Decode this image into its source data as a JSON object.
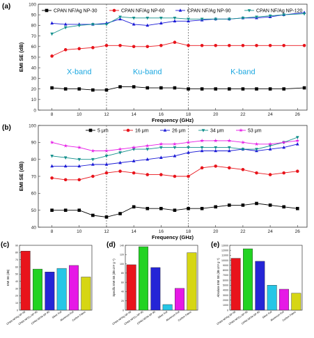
{
  "chart_data": [
    {
      "panel_label": "(a)",
      "type": "line",
      "xlabel": "Frequency (GHz)",
      "ylabel": "EMI SE (dB)",
      "xlim": [
        7,
        26.7
      ],
      "ylim": [
        0,
        100
      ],
      "xticks": [
        8,
        10,
        12,
        14,
        16,
        18,
        20,
        22,
        24,
        26
      ],
      "yticks": [
        0,
        10,
        20,
        30,
        40,
        50,
        60,
        70,
        80,
        90,
        100
      ],
      "x": [
        8,
        9,
        10,
        11,
        12,
        13,
        14,
        15,
        16,
        17,
        18,
        19,
        20,
        21,
        22,
        23,
        24,
        25,
        26.5
      ],
      "legend_position": "top",
      "band_dividers": [
        12,
        18
      ],
      "band_labels": [
        {
          "text": "X-band",
          "x": 10,
          "y": 34
        },
        {
          "text": "Ku-band",
          "x": 15,
          "y": 34
        },
        {
          "text": "K-band",
          "x": 22,
          "y": 34
        }
      ],
      "band_label_color": "#1aa7e0",
      "series": [
        {
          "name": "CPAN NF/Ag NP-30",
          "color": "#000000",
          "marker": "square",
          "values": [
            21,
            20,
            20,
            19,
            19,
            22,
            22,
            21,
            21,
            21,
            20,
            20,
            20,
            20,
            20,
            20,
            20,
            20,
            21
          ]
        },
        {
          "name": "CPAN NF/Ag NP-60",
          "color": "#e8141b",
          "marker": "circle",
          "values": [
            51,
            57,
            58,
            59,
            61,
            61,
            60,
            60,
            61,
            64,
            61,
            61,
            61,
            61,
            61,
            61,
            61,
            61,
            61
          ]
        },
        {
          "name": "CPAN NF/Ag NP-90",
          "color": "#1a1ad6",
          "marker": "triangle",
          "values": [
            82,
            81,
            81,
            81,
            82,
            86,
            81,
            80,
            82,
            84,
            84,
            85,
            86,
            86,
            87,
            87,
            88,
            90,
            92
          ]
        },
        {
          "name": "CPAN NF/Ag NP-120",
          "color": "#13908c",
          "marker": "triangle-down",
          "values": [
            72,
            78,
            80,
            81,
            81,
            88,
            87,
            87,
            87,
            87,
            86,
            86,
            86,
            86,
            87,
            88,
            89,
            90,
            91
          ]
        }
      ]
    },
    {
      "panel_label": "(b)",
      "type": "line",
      "xlabel": "Frequency (GHz)",
      "ylabel": "EMI SE (dB)",
      "xlim": [
        7,
        26.7
      ],
      "ylim": [
        40,
        100
      ],
      "xticks": [
        8,
        10,
        12,
        14,
        16,
        18,
        20,
        22,
        24,
        26
      ],
      "yticks": [
        40,
        50,
        60,
        70,
        80,
        90,
        100
      ],
      "x": [
        8,
        9,
        10,
        11,
        12,
        13,
        14,
        15,
        16,
        17,
        18,
        19,
        20,
        21,
        22,
        23,
        24,
        25,
        26
      ],
      "legend_position": "top",
      "band_dividers": [
        12,
        18
      ],
      "series": [
        {
          "name": "5 μm",
          "color": "#000000",
          "marker": "square",
          "values": [
            50,
            50,
            50,
            47,
            46,
            48,
            52,
            51,
            51,
            50,
            51,
            51,
            52,
            53,
            53,
            54,
            53,
            52,
            51
          ]
        },
        {
          "name": "16 μm",
          "color": "#e8141b",
          "marker": "circle",
          "values": [
            69,
            68,
            68,
            70,
            72,
            73,
            72,
            71,
            71,
            70,
            70,
            75,
            76,
            75,
            74,
            72,
            71,
            72,
            73
          ]
        },
        {
          "name": "26 μm",
          "color": "#1a1ad6",
          "marker": "triangle",
          "values": [
            76,
            76,
            76,
            77,
            77,
            78,
            79,
            80,
            81,
            82,
            84,
            85,
            85,
            85,
            86,
            85,
            86,
            87,
            89
          ]
        },
        {
          "name": "34 μm",
          "color": "#13908c",
          "marker": "triangle-down",
          "values": [
            82,
            81,
            80,
            80,
            82,
            84,
            86,
            86,
            87,
            87,
            87,
            87,
            87,
            87,
            86,
            86,
            88,
            90,
            93
          ]
        },
        {
          "name": "53 μm",
          "color": "#e619e6",
          "marker": "star",
          "values": [
            90,
            88,
            87,
            85,
            85,
            86,
            87,
            88,
            89,
            89,
            90,
            91,
            91,
            91,
            90,
            89,
            89,
            90,
            91
          ]
        }
      ]
    },
    {
      "panel_label": "(c)",
      "type": "bar",
      "ylabel": "EMI SE (dB)",
      "ylim": [
        0,
        90
      ],
      "yticks": [
        0,
        10,
        20,
        30,
        40,
        50,
        60,
        70,
        80,
        90
      ],
      "categories": [
        "CPAN NF/Ag NP-90",
        "CPAN NF/Cu NP-90",
        "CPAN NF/Ni NP-90",
        "Silver Foil",
        "Aluminum Foil",
        "Carbon Fabric"
      ],
      "values": [
        82,
        57,
        53,
        58,
        62,
        46
      ],
      "colors": [
        "#e8141b",
        "#22d322",
        "#2525d6",
        "#26c6e6",
        "#e619e6",
        "#d6d614"
      ]
    },
    {
      "panel_label": "(d)",
      "type": "bar",
      "ylabel": "Specific EMI SE (dB cm³ g⁻¹)",
      "ylim": [
        0,
        140
      ],
      "yticks": [
        0,
        20,
        40,
        60,
        80,
        100,
        120,
        140
      ],
      "categories": [
        "CPAN NF/Ag NP-90",
        "CPAN NF/Cu NP-90",
        "CPAN NF/Ni NP-90",
        "Silver Foil",
        "Aluminum Foil",
        "Carbon Fabric"
      ],
      "values": [
        98,
        137,
        92,
        12,
        47,
        124
      ],
      "colors": [
        "#e8141b",
        "#22d322",
        "#2525d6",
        "#26c6e6",
        "#e619e6",
        "#d6d614"
      ]
    },
    {
      "panel_label": "(e)",
      "type": "bar",
      "ylabel": "Absolute EMI SE (dB cm² g⁻¹)",
      "ylim": [
        0,
        13000
      ],
      "yticks": [
        0,
        1000,
        2000,
        3000,
        4000,
        5000,
        6000,
        7000,
        8000,
        9000,
        10000,
        11000,
        12000,
        13000
      ],
      "categories": [
        "CPAN NF/Ag NP-90",
        "CPAN NF/Cu NP-90",
        "CPAN NF/Ni NP-90",
        "Silver Foil",
        "Aluminum Foil",
        "Carbon Fabric"
      ],
      "values": [
        10400,
        12300,
        9800,
        5000,
        4200,
        3400
      ],
      "colors": [
        "#e8141b",
        "#22d322",
        "#2525d6",
        "#26c6e6",
        "#e619e6",
        "#d6d614"
      ]
    }
  ]
}
